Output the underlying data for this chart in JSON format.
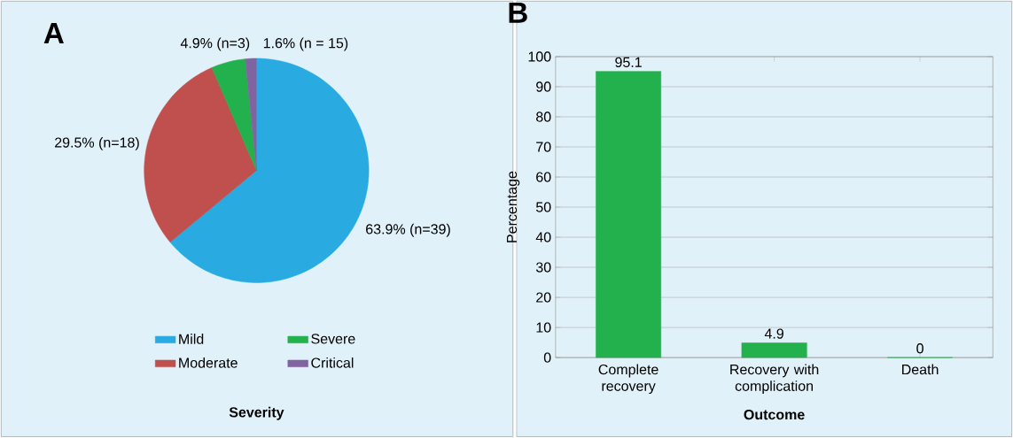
{
  "chart_data": [
    {
      "type": "pie",
      "title": "A",
      "xlabel": "Severity",
      "categories": [
        "Mild",
        "Moderate",
        "Severe",
        "Critical"
      ],
      "values": [
        63.9,
        29.5,
        4.9,
        1.6
      ],
      "colors": [
        "#29abe2",
        "#c0504d",
        "#22b14c",
        "#8064a2"
      ],
      "value_labels": [
        "63.9% (n=39)",
        "29.5% (n=18)",
        "4.9% (n=3)",
        "1.6% (n = 15)"
      ],
      "legend": "bottom"
    },
    {
      "type": "bar",
      "title": "B",
      "xlabel": "Outcome",
      "ylabel": "Percentage",
      "categories": [
        "Complete recovery",
        "Recovery with complication",
        "Death"
      ],
      "values": [
        95.1,
        4.9,
        0
      ],
      "color": "#22b14c",
      "ylim": [
        0,
        100
      ],
      "yticks": [
        0,
        10,
        20,
        30,
        40,
        50,
        60,
        70,
        80,
        90,
        100
      ],
      "grid": "y",
      "data_labels": true
    }
  ]
}
